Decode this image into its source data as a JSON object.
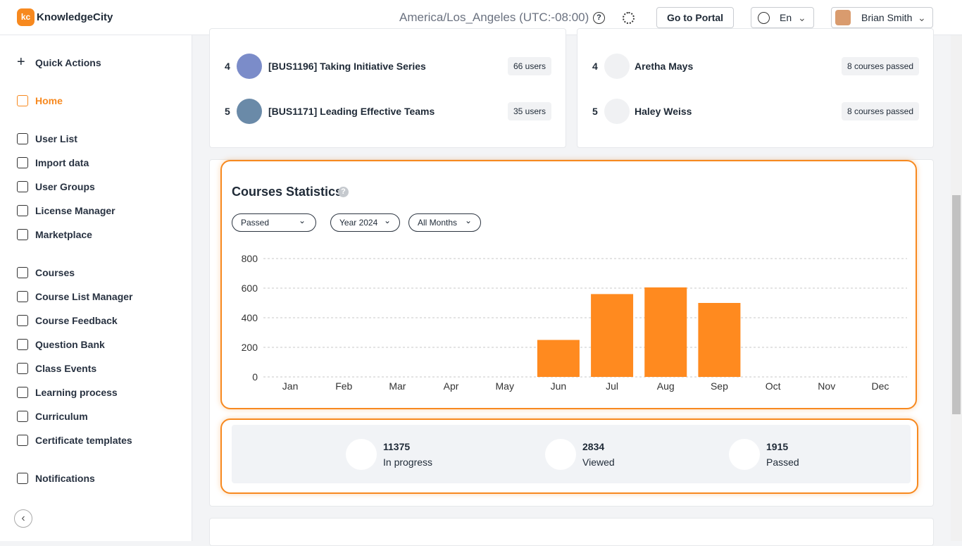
{
  "header": {
    "logo": "KnowledgeCity",
    "timezone": "America/Los_Angeles (UTC:-08:00)",
    "portal_button": "Go to Portal",
    "language": "En",
    "user": "Brian Smith"
  },
  "sidebar": {
    "quick_actions": "Quick Actions",
    "items": [
      "Home",
      "User List",
      "Import data",
      "User Groups",
      "License Manager",
      "Marketplace",
      "Courses",
      "Course List Manager",
      "Course Feedback",
      "Question Bank",
      "Class Events",
      "Learning process",
      "Curriculum",
      "Certificate templates",
      "Notifications"
    ]
  },
  "top_courses": [
    {
      "rank": 4,
      "title": "[BUS1196] Taking Initiative Series",
      "badge": "66 users"
    },
    {
      "rank": 5,
      "title": "[BUS1171] Leading Effective Teams",
      "badge": "35 users"
    }
  ],
  "top_learners": [
    {
      "rank": 4,
      "name": "Aretha Mays",
      "badge": "8 courses passed"
    },
    {
      "rank": 5,
      "name": "Haley Weiss",
      "badge": "8 courses passed"
    }
  ],
  "filters": [
    "Passed",
    "Year 2024",
    "All Months"
  ],
  "chart_data": {
    "type": "bar",
    "title": "Courses Statistics",
    "categories": [
      "Jan",
      "Feb",
      "Mar",
      "Apr",
      "May",
      "Jun",
      "Jul",
      "Aug",
      "Sep",
      "Oct",
      "Nov",
      "Dec"
    ],
    "values": [
      0,
      0,
      0,
      0,
      0,
      250,
      560,
      605,
      500,
      0,
      0,
      0
    ],
    "color": "#ff8a1f",
    "ylim": [
      0,
      800
    ],
    "yticks": [
      0,
      200,
      400,
      600,
      800
    ],
    "grid": true
  },
  "summary": [
    {
      "value": 11375,
      "label": "In progress"
    },
    {
      "value": 2834,
      "label": "Viewed"
    },
    {
      "value": 1915,
      "label": "Passed"
    }
  ]
}
